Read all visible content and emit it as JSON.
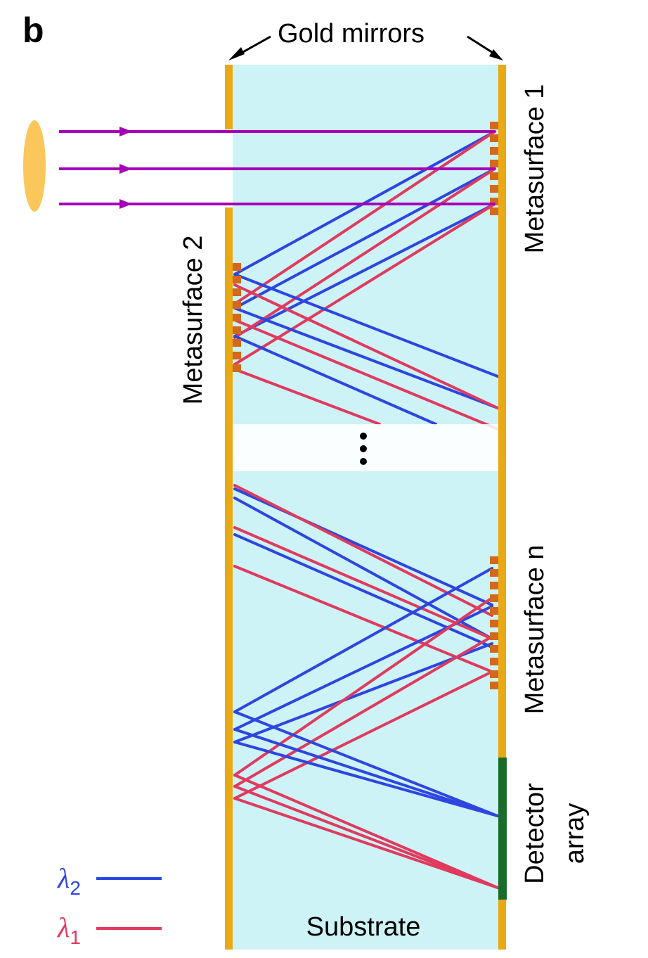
{
  "figure": {
    "panel_label": "b",
    "labels": {
      "gold_mirrors": "Gold mirrors",
      "metasurface_1": "Metasurface 1",
      "metasurface_2": "Metasurface 2",
      "metasurface_n": "Metasurface n",
      "detector_line1": "Detector",
      "detector_line2": "array",
      "substrate": "Substrate",
      "ellipsis": "⋮"
    },
    "legend": [
      {
        "symbol": "λ",
        "subscript": "2",
        "color": "#2e46e0"
      },
      {
        "symbol": "λ",
        "subscript": "1",
        "color": "#e03a5e"
      }
    ],
    "colors": {
      "substrate": "#cdf3f6",
      "mirror": "#e8a914",
      "metasurface": "#d2691e",
      "detector": "#1a6b2c",
      "incident": "#a400b8",
      "lens": "#fbc75a",
      "blue_ray": "#2e46e0",
      "red_ray": "#e03a5e"
    }
  }
}
